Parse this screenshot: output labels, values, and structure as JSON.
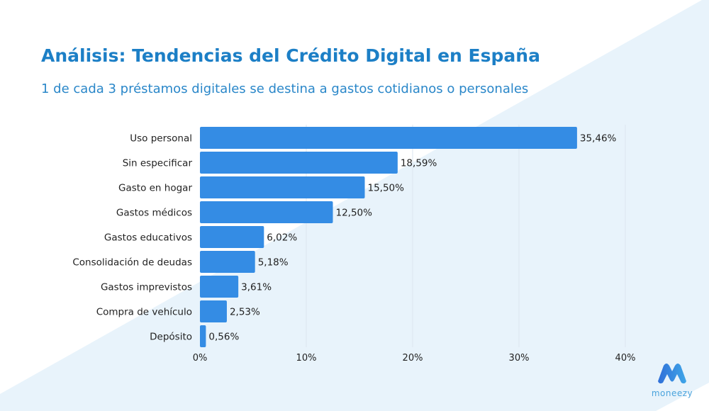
{
  "title": "Análisis: Tendencias del Crédito Digital en España",
  "subtitle": "1 de cada 3 préstamos digitales se destina a gastos cotidianos o personales",
  "logo_text": "moneezy",
  "colors": {
    "bar": "#348ce4",
    "title": "#1c7fc6",
    "background_accent": "#e8f3fb"
  },
  "chart_data": {
    "type": "bar",
    "orientation": "horizontal",
    "categories": [
      "Uso personal",
      "Sin especificar",
      "Gasto en hogar",
      "Gastos médicos",
      "Gastos educativos",
      "Consolidación de deudas",
      "Gastos imprevistos",
      "Compra de vehículo",
      "Depósito"
    ],
    "values": [
      35.46,
      18.59,
      15.5,
      12.5,
      6.02,
      5.18,
      3.61,
      2.53,
      0.56
    ],
    "data_labels": [
      "35,46%",
      "18,59%",
      "15,50%",
      "12,50%",
      "6,02%",
      "5,18%",
      "3,61%",
      "2,53%",
      "0,56%"
    ],
    "xlim": [
      0,
      40
    ],
    "xticks": [
      0,
      10,
      20,
      30,
      40
    ],
    "xtick_labels": [
      "0%",
      "10%",
      "20%",
      "30%",
      "40%"
    ],
    "grid": "vertical"
  }
}
